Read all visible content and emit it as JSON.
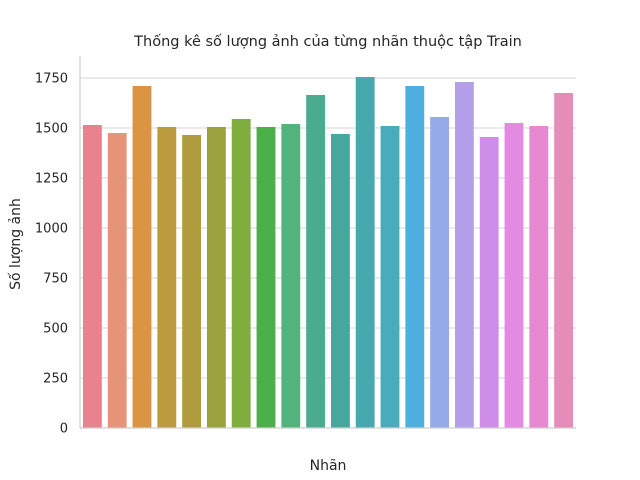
{
  "chart_data": {
    "type": "bar",
    "title": "Thống kê số lượng ảnh của từng nhãn thuộc tập Train",
    "xlabel": "Nhãn",
    "ylabel": "Số lượng ảnh",
    "ylim": [
      0,
      1850
    ],
    "yticks": [
      0,
      250,
      500,
      750,
      1000,
      1250,
      1500,
      1750
    ],
    "grid": "horizontal",
    "values": [
      1515,
      1475,
      1710,
      1505,
      1465,
      1505,
      1545,
      1505,
      1520,
      1665,
      1470,
      1755,
      1510,
      1710,
      1555,
      1730,
      1455,
      1525,
      1510,
      1675
    ],
    "colors": [
      "#e8828f",
      "#e5947a",
      "#d99543",
      "#bc9a3f",
      "#b09b3e",
      "#9aa23e",
      "#7fae3f",
      "#4bb049",
      "#53b37c",
      "#4aab8e",
      "#46a79d",
      "#47a8ad",
      "#4aabbd",
      "#4eaee0",
      "#95aae8",
      "#b49fea",
      "#ce8de9",
      "#e38ae3",
      "#e689d2",
      "#e68cb8"
    ]
  }
}
